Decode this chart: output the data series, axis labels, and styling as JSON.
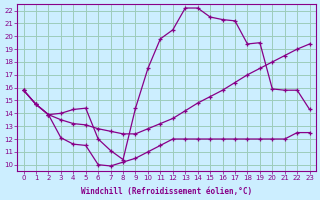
{
  "xlabel": "Windchill (Refroidissement éolien,°C)",
  "bg_color": "#cceeff",
  "grid_color": "#9dccbb",
  "line_color": "#880088",
  "xlim": [
    -0.5,
    23.5
  ],
  "ylim": [
    9.5,
    22.5
  ],
  "yticks": [
    10,
    11,
    12,
    13,
    14,
    15,
    16,
    17,
    18,
    19,
    20,
    21,
    22
  ],
  "xticks": [
    0,
    1,
    2,
    3,
    4,
    5,
    6,
    7,
    8,
    9,
    10,
    11,
    12,
    13,
    14,
    15,
    16,
    17,
    18,
    19,
    20,
    21,
    22,
    23
  ],
  "line1_x": [
    0,
    1,
    2,
    3,
    4,
    5,
    6,
    7,
    8,
    9,
    10,
    11,
    12,
    13,
    14,
    15,
    16,
    17,
    18,
    19,
    20,
    21,
    22,
    23
  ],
  "line1_y": [
    15.8,
    14.7,
    13.9,
    14.0,
    14.3,
    14.4,
    12.0,
    11.1,
    10.4,
    14.4,
    17.5,
    19.8,
    20.5,
    22.2,
    22.2,
    21.5,
    21.3,
    21.2,
    19.4,
    19.5,
    15.9,
    15.8,
    15.8,
    14.3
  ],
  "line2_x": [
    0,
    1,
    2,
    3,
    4,
    5,
    6,
    7,
    8,
    9,
    10,
    11,
    12,
    13,
    14,
    15,
    16,
    17,
    18,
    19,
    20,
    21,
    22,
    23
  ],
  "line2_y": [
    15.8,
    14.7,
    13.9,
    13.5,
    13.2,
    13.1,
    12.8,
    12.6,
    12.4,
    12.4,
    12.8,
    13.2,
    13.6,
    14.2,
    14.8,
    15.3,
    15.8,
    16.4,
    17.0,
    17.5,
    18.0,
    18.5,
    19.0,
    19.4
  ],
  "line3_x": [
    0,
    1,
    2,
    3,
    4,
    5,
    6,
    7,
    8,
    9,
    10,
    11,
    12,
    13,
    14,
    15,
    16,
    17,
    18,
    19,
    20,
    21,
    22,
    23
  ],
  "line3_y": [
    15.8,
    14.7,
    13.9,
    12.1,
    11.6,
    11.5,
    10.0,
    9.9,
    10.2,
    10.5,
    11.0,
    11.5,
    12.0,
    12.0,
    12.0,
    12.0,
    12.0,
    12.0,
    12.0,
    12.0,
    12.0,
    12.0,
    12.5,
    12.5
  ]
}
